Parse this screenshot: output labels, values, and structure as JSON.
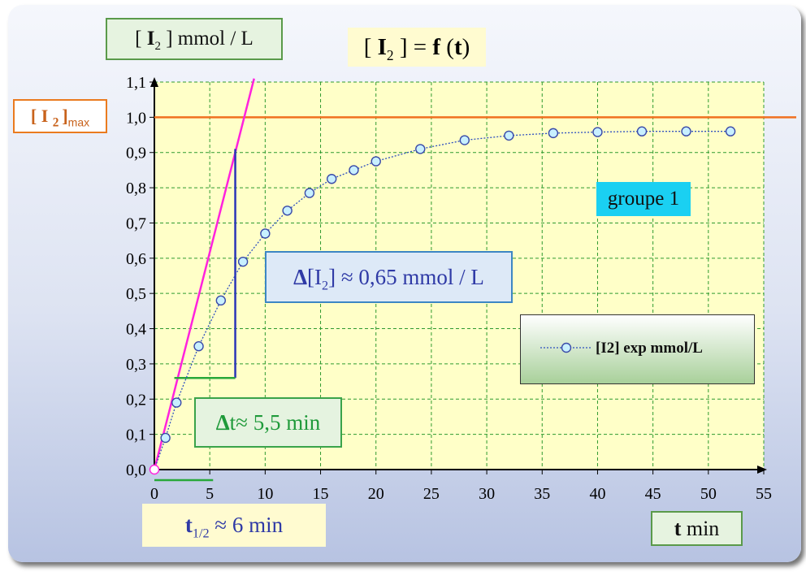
{
  "title": {
    "pre": "[ ",
    "main": "I",
    "sub": "2",
    "post": " ] = ",
    "f": "f",
    "arg_open": " (",
    "t": "t",
    "arg_close": ")"
  },
  "ylabel": {
    "pre": "[ ",
    "main": "I",
    "sub": "2",
    "post": " ] mmol / L"
  },
  "ymax_label": {
    "main": "[ I ",
    "sub2": "2 ",
    "close": "]",
    "sub": "max"
  },
  "group_label": "groupe 1",
  "delta_I": {
    "pre": "Δ",
    "main": "[I",
    "sub": "2",
    "post": "] ≈ 0,65 mmol / L"
  },
  "delta_t": {
    "pre": "Δ",
    "post": "t≈ 5,5 min"
  },
  "t_half": {
    "main": "t",
    "sub": "1/2",
    "post": " ≈ 6 min"
  },
  "xlabel": {
    "main": "t",
    "post": " min"
  },
  "legend": {
    "label": "[I2] exp mmol/L"
  },
  "colors": {
    "plot_bg": "#ffffc8",
    "grid": "#2f9a2f",
    "series": "#2e4fc0",
    "marker_fill": "#c8f0ff",
    "marker_stroke": "#3a4aa8",
    "max_line": "#f07020",
    "tangent": "#ff22dd",
    "vertical": "#2a34b8",
    "horizontal": "#28a83a"
  },
  "chart_data": {
    "type": "scatter",
    "xlim": [
      0,
      55
    ],
    "ylim": [
      0,
      1.1
    ],
    "x_ticks": [
      "0",
      "5",
      "10",
      "15",
      "20",
      "25",
      "30",
      "35",
      "40",
      "45",
      "50",
      "55"
    ],
    "y_ticks": [
      "0,0",
      "0,1",
      "0,2",
      "0,3",
      "0,4",
      "0,5",
      "0,6",
      "0,7",
      "0,8",
      "0,9",
      "1,0",
      "1,1"
    ],
    "grid": true,
    "series": [
      {
        "name": "[I2] exp mmol/L",
        "x": [
          0,
          1,
          2,
          4,
          6,
          8,
          10,
          12,
          14,
          16,
          18,
          20,
          24,
          28,
          32,
          36,
          40,
          44,
          48,
          52
        ],
        "y": [
          0.0,
          0.09,
          0.19,
          0.35,
          0.48,
          0.59,
          0.67,
          0.735,
          0.785,
          0.825,
          0.85,
          0.875,
          0.91,
          0.935,
          0.948,
          0.955,
          0.958,
          0.96,
          0.96,
          0.96
        ]
      }
    ],
    "annotations": {
      "max_line_y": 1.0,
      "tangent": {
        "x": [
          0,
          9
        ],
        "y": [
          0,
          1.11
        ]
      },
      "vertical_segment": {
        "x": 7.3,
        "y": [
          0.26,
          0.91
        ]
      },
      "horizontal_segment": {
        "y": 0.26,
        "x": [
          1.8,
          7.3
        ]
      },
      "t_half_segment": {
        "y": -0.03,
        "x": [
          0,
          5.3
        ]
      }
    }
  }
}
